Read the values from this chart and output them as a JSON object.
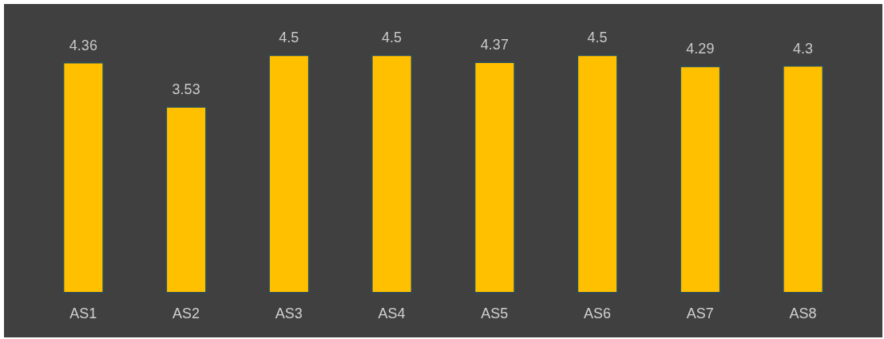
{
  "chart_data": {
    "type": "bar",
    "categories": [
      "AS1",
      "AS2",
      "AS3",
      "AS4",
      "AS5",
      "AS6",
      "AS7",
      "AS8"
    ],
    "series": [
      {
        "color": "#ffc000",
        "values": [
          4.36,
          3.53,
          4.5,
          4.5,
          4.37,
          4.5,
          4.29,
          4.3
        ]
      }
    ],
    "data_labels": true
  }
}
